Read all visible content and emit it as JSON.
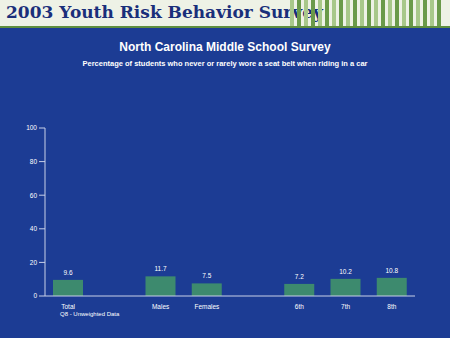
{
  "chart_data": {
    "type": "bar",
    "header": "2003 Youth Risk Behavior Survey",
    "title": "North Carolina Middle School Survey",
    "subtitle": "Percentage of students who never or rarely wore a seat belt when riding in a car",
    "categories": [
      "Total",
      null,
      "Males",
      "Females",
      null,
      "6th",
      "7th",
      "8th"
    ],
    "values": [
      9.6,
      null,
      11.7,
      7.5,
      null,
      7.2,
      10.2,
      10.8
    ],
    "color": "#3d8a6e",
    "ylim": [
      0,
      100
    ],
    "yticks": [
      0,
      20,
      40,
      60,
      80,
      100
    ],
    "data_labels": true,
    "footnote": "Q8 - Unweighted Data"
  }
}
